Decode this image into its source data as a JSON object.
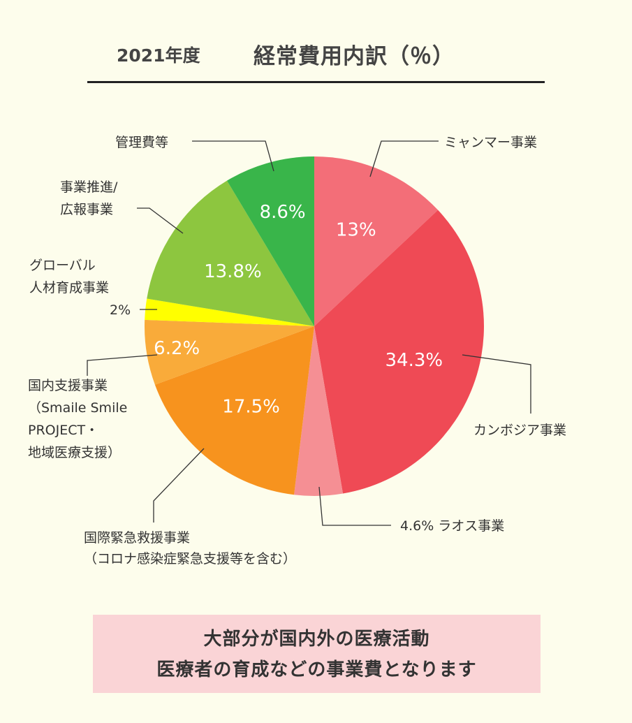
{
  "header": {
    "year": "2021年度",
    "title": "経常費用内訳（％）"
  },
  "chart_data": {
    "type": "pie",
    "title": "2021年度　経常費用内訳（％）",
    "slices": [
      {
        "name": "ミャンマー事業",
        "value": 13,
        "value_label": "13%",
        "color": "#f36e78"
      },
      {
        "name": "カンボジア事業",
        "value": 34.3,
        "value_label": "34.3%",
        "color": "#ef4a55"
      },
      {
        "name": "ラオス事業",
        "value": 4.6,
        "value_label": "4.6%",
        "color": "#f58f94"
      },
      {
        "name": "国際緊急救援事業（コロナ感染症緊急支援等を含む）",
        "value": 17.5,
        "value_label": "17.5%",
        "color": "#f7931e"
      },
      {
        "name": "国内支援事業（Smaile Smile PROJECT・地域医療支援）",
        "value": 6.2,
        "value_label": "6.2%",
        "color": "#f9ab3a"
      },
      {
        "name": "グローバル人材育成事業",
        "value": 2,
        "value_label": "2%",
        "color": "#ffff00"
      },
      {
        "name": "事業推進/広報事業",
        "value": 13.8,
        "value_label": "13.8%",
        "color": "#8dc63f"
      },
      {
        "name": "管理費等",
        "value": 8.6,
        "value_label": "8.6%",
        "color": "#39b54a"
      }
    ]
  },
  "labels": {
    "myanmar": "ミャンマー事業",
    "cambodia": "カンボジア事業",
    "laos": "4.6% ラオス事業",
    "emergency_1": "国際緊急救援事業",
    "emergency_2": "（コロナ感染症緊急支援等を含む）",
    "domestic_1": "国内支援事業",
    "domestic_2": "（Smaile Smile",
    "domestic_3": "PROJECT・",
    "domestic_4": "地域医療支援）",
    "global_1": "グローバル",
    "global_2": "人材育成事業",
    "global_3": "2%",
    "promotion_1": "事業推進/",
    "promotion_2": "広報事業",
    "admin": "管理費等"
  },
  "callout": {
    "line1": "大部分が国内外の医療活動",
    "line2": "医療者の育成などの事業費となります"
  }
}
